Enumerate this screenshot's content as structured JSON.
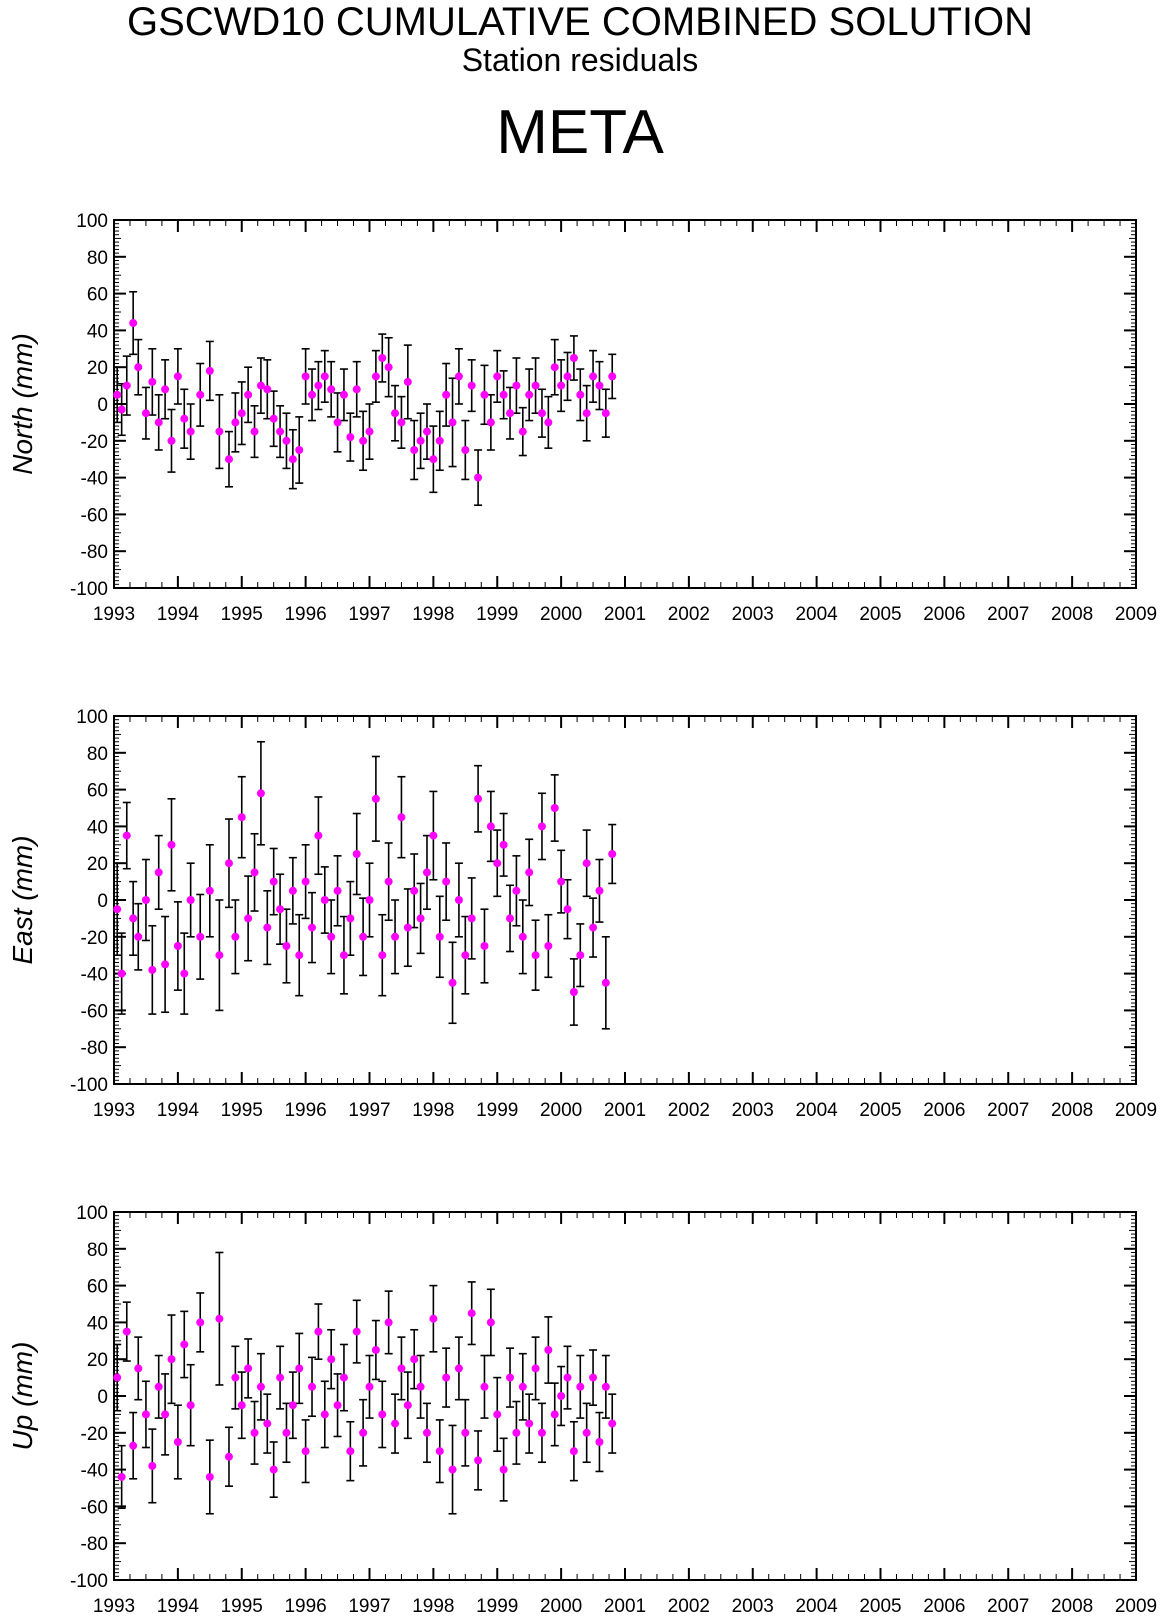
{
  "header": {
    "title": "GSCWD10 CUMULATIVE COMBINED SOLUTION",
    "subtitle": "Station residuals",
    "station": "META"
  },
  "colors": {
    "point": "#ff00ff",
    "errorbar": "#000000",
    "axis": "#000000"
  },
  "chart_data": [
    {
      "type": "scatter",
      "ylabel": "North (mm)",
      "xlim": [
        1993,
        2009
      ],
      "ylim": [
        -100,
        100
      ],
      "x_ticks": [
        "1993",
        "1994",
        "1995",
        "1996",
        "1997",
        "1998",
        "1999",
        "2000",
        "2001",
        "2002",
        "2003",
        "2004",
        "2005",
        "2006",
        "2007",
        "2008",
        "2009"
      ],
      "y_ticks": [
        "100",
        "80",
        "60",
        "40",
        "20",
        "0",
        "-20",
        "-40",
        "-60",
        "-80",
        "-100"
      ],
      "series": [
        {
          "x": [
            1993.05,
            1993.12,
            1993.2,
            1993.3,
            1993.38,
            1993.5,
            1993.6,
            1993.7,
            1993.8,
            1993.9,
            1994.0,
            1994.1,
            1994.2,
            1994.35,
            1994.5,
            1994.65,
            1994.8,
            1994.9,
            1995.0,
            1995.1,
            1995.2,
            1995.3,
            1995.4,
            1995.5,
            1995.6,
            1995.7,
            1995.8,
            1995.9,
            1996.0,
            1996.1,
            1996.2,
            1996.3,
            1996.4,
            1996.5,
            1996.6,
            1996.7,
            1996.8,
            1996.9,
            1997.0,
            1997.1,
            1997.2,
            1997.3,
            1997.4,
            1997.5,
            1997.6,
            1997.7,
            1997.8,
            1997.9,
            1998.0,
            1998.1,
            1998.2,
            1998.3,
            1998.4,
            1998.5,
            1998.6,
            1998.7,
            1998.8,
            1998.9,
            1999.0,
            1999.1,
            1999.2,
            1999.3,
            1999.4,
            1999.5,
            1999.6,
            1999.7,
            1999.8,
            1999.9,
            2000.0,
            2000.1,
            2000.2,
            2000.3,
            2000.4,
            2000.5,
            2000.6,
            2000.7,
            2000.8
          ],
          "y": [
            5,
            -3,
            10,
            44,
            20,
            -5,
            12,
            -10,
            8,
            -20,
            15,
            -8,
            -15,
            5,
            18,
            -15,
            -30,
            -10,
            -5,
            5,
            -15,
            10,
            8,
            -8,
            -15,
            -20,
            -30,
            -25,
            15,
            5,
            10,
            15,
            8,
            -10,
            5,
            -18,
            8,
            -20,
            -15,
            15,
            25,
            20,
            -5,
            -10,
            12,
            -25,
            -20,
            -15,
            -30,
            -20,
            5,
            -10,
            15,
            -25,
            10,
            -40,
            5,
            -10,
            15,
            5,
            -5,
            10,
            -15,
            5,
            10,
            -5,
            -10,
            20,
            10,
            15,
            25,
            5,
            -5,
            15,
            10,
            -5,
            15
          ],
          "err": [
            15,
            14,
            16,
            17,
            15,
            14,
            18,
            15,
            16,
            17,
            15,
            16,
            15,
            17,
            16,
            20,
            15,
            16,
            17,
            15,
            14,
            15,
            16,
            15,
            14,
            15,
            16,
            18,
            15,
            14,
            13,
            14,
            15,
            16,
            14,
            13,
            15,
            16,
            15,
            14,
            13,
            16,
            15,
            14,
            20,
            16,
            15,
            15,
            18,
            16,
            17,
            24,
            15,
            16,
            14,
            15,
            16,
            15,
            14,
            13,
            14,
            15,
            13,
            14,
            15,
            13,
            14,
            15,
            14,
            13,
            12,
            14,
            15,
            14,
            13,
            13,
            12
          ]
        }
      ]
    },
    {
      "type": "scatter",
      "ylabel": "East (mm)",
      "xlim": [
        1993,
        2009
      ],
      "ylim": [
        -100,
        100
      ],
      "x_ticks": [
        "1993",
        "1994",
        "1995",
        "1996",
        "1997",
        "1998",
        "1999",
        "2000",
        "2001",
        "2002",
        "2003",
        "2004",
        "2005",
        "2006",
        "2007",
        "2008",
        "2009"
      ],
      "y_ticks": [
        "100",
        "80",
        "60",
        "40",
        "20",
        "0",
        "-20",
        "-40",
        "-60",
        "-80",
        "-100"
      ],
      "series": [
        {
          "x": [
            1993.05,
            1993.12,
            1993.2,
            1993.3,
            1993.38,
            1993.5,
            1993.6,
            1993.7,
            1993.8,
            1993.9,
            1994.0,
            1994.1,
            1994.2,
            1994.35,
            1994.5,
            1994.65,
            1994.8,
            1994.9,
            1995.0,
            1995.1,
            1995.2,
            1995.3,
            1995.4,
            1995.5,
            1995.6,
            1995.7,
            1995.8,
            1995.9,
            1996.0,
            1996.1,
            1996.2,
            1996.3,
            1996.4,
            1996.5,
            1996.6,
            1996.7,
            1996.8,
            1996.9,
            1997.0,
            1997.1,
            1997.2,
            1997.3,
            1997.4,
            1997.5,
            1997.6,
            1997.7,
            1997.8,
            1997.9,
            1998.0,
            1998.1,
            1998.2,
            1998.3,
            1998.4,
            1998.5,
            1998.6,
            1998.7,
            1998.8,
            1998.9,
            1999.0,
            1999.1,
            1999.2,
            1999.3,
            1999.4,
            1999.5,
            1999.6,
            1999.7,
            1999.8,
            1999.9,
            2000.0,
            2000.1,
            2000.2,
            2000.3,
            2000.4,
            2000.5,
            2000.6,
            2000.7,
            2000.8
          ],
          "y": [
            -5,
            -40,
            35,
            -10,
            -20,
            0,
            -38,
            15,
            -35,
            30,
            -25,
            -40,
            0,
            -20,
            5,
            -30,
            20,
            -20,
            45,
            -10,
            15,
            58,
            -15,
            10,
            -5,
            -25,
            5,
            -30,
            10,
            -15,
            35,
            0,
            -20,
            5,
            -30,
            -10,
            25,
            -20,
            0,
            55,
            -30,
            10,
            -20,
            45,
            -15,
            5,
            -10,
            15,
            35,
            -20,
            10,
            -45,
            0,
            -30,
            -10,
            55,
            -25,
            40,
            20,
            30,
            -10,
            5,
            -20,
            15,
            -30,
            40,
            -25,
            50,
            10,
            -5,
            -50,
            -30,
            20,
            -15,
            5,
            -45,
            25
          ],
          "err": [
            25,
            22,
            18,
            20,
            18,
            22,
            24,
            20,
            26,
            25,
            24,
            22,
            20,
            23,
            25,
            30,
            24,
            20,
            22,
            23,
            21,
            28,
            20,
            18,
            19,
            20,
            18,
            22,
            20,
            19,
            21,
            18,
            20,
            19,
            21,
            20,
            22,
            21,
            20,
            23,
            22,
            21,
            20,
            22,
            21,
            20,
            19,
            20,
            24,
            22,
            21,
            22,
            20,
            21,
            22,
            18,
            20,
            19,
            18,
            17,
            18,
            19,
            20,
            18,
            19,
            18,
            17,
            18,
            17,
            16,
            18,
            17,
            18,
            16,
            17,
            25,
            16
          ]
        }
      ]
    },
    {
      "type": "scatter",
      "ylabel": "Up (mm)",
      "xlim": [
        1993,
        2009
      ],
      "ylim": [
        -100,
        100
      ],
      "x_ticks": [
        "1993",
        "1994",
        "1995",
        "1996",
        "1997",
        "1998",
        "1999",
        "2000",
        "2001",
        "2002",
        "2003",
        "2004",
        "2005",
        "2006",
        "2007",
        "2008",
        "2009"
      ],
      "y_ticks": [
        "100",
        "80",
        "60",
        "40",
        "20",
        "0",
        "-20",
        "-40",
        "-60",
        "-80",
        "-100"
      ],
      "series": [
        {
          "x": [
            1993.05,
            1993.12,
            1993.2,
            1993.3,
            1993.38,
            1993.5,
            1993.6,
            1993.7,
            1993.8,
            1993.9,
            1994.0,
            1994.1,
            1994.2,
            1994.35,
            1994.5,
            1994.65,
            1994.8,
            1994.9,
            1995.0,
            1995.1,
            1995.2,
            1995.3,
            1995.4,
            1995.5,
            1995.6,
            1995.7,
            1995.8,
            1995.9,
            1996.0,
            1996.1,
            1996.2,
            1996.3,
            1996.4,
            1996.5,
            1996.6,
            1996.7,
            1996.8,
            1996.9,
            1997.0,
            1997.1,
            1997.2,
            1997.3,
            1997.4,
            1997.5,
            1997.6,
            1997.7,
            1997.8,
            1997.9,
            1998.0,
            1998.1,
            1998.2,
            1998.3,
            1998.4,
            1998.5,
            1998.6,
            1998.7,
            1998.8,
            1998.9,
            1999.0,
            1999.1,
            1999.2,
            1999.3,
            1999.4,
            1999.5,
            1999.6,
            1999.7,
            1999.8,
            1999.9,
            2000.0,
            2000.1,
            2000.2,
            2000.3,
            2000.4,
            2000.5,
            2000.6,
            2000.7,
            2000.8
          ],
          "y": [
            10,
            -44,
            35,
            -27,
            15,
            -10,
            -38,
            5,
            -10,
            20,
            -25,
            28,
            -5,
            40,
            -44,
            42,
            -33,
            10,
            -5,
            15,
            -20,
            5,
            -15,
            -40,
            10,
            -20,
            -5,
            15,
            -30,
            5,
            35,
            -10,
            20,
            -5,
            10,
            -30,
            35,
            -20,
            5,
            25,
            -10,
            40,
            -15,
            15,
            -5,
            20,
            5,
            -20,
            42,
            -30,
            10,
            -40,
            15,
            -20,
            45,
            -35,
            5,
            40,
            -10,
            -40,
            10,
            -20,
            5,
            -15,
            15,
            -20,
            25,
            -10,
            0,
            10,
            -30,
            5,
            -20,
            10,
            -25,
            5,
            -15
          ],
          "err": [
            18,
            17,
            16,
            18,
            17,
            18,
            20,
            17,
            22,
            24,
            20,
            18,
            22,
            16,
            20,
            36,
            16,
            17,
            18,
            16,
            17,
            18,
            16,
            15,
            17,
            16,
            18,
            19,
            17,
            16,
            15,
            18,
            16,
            17,
            18,
            16,
            17,
            18,
            17,
            16,
            18,
            17,
            16,
            17,
            18,
            16,
            17,
            16,
            18,
            17,
            16,
            24,
            17,
            18,
            17,
            16,
            17,
            18,
            20,
            17,
            16,
            17,
            18,
            16,
            17,
            16,
            18,
            17,
            16,
            17,
            16,
            17,
            16,
            15,
            16,
            17,
            16
          ]
        }
      ]
    }
  ]
}
